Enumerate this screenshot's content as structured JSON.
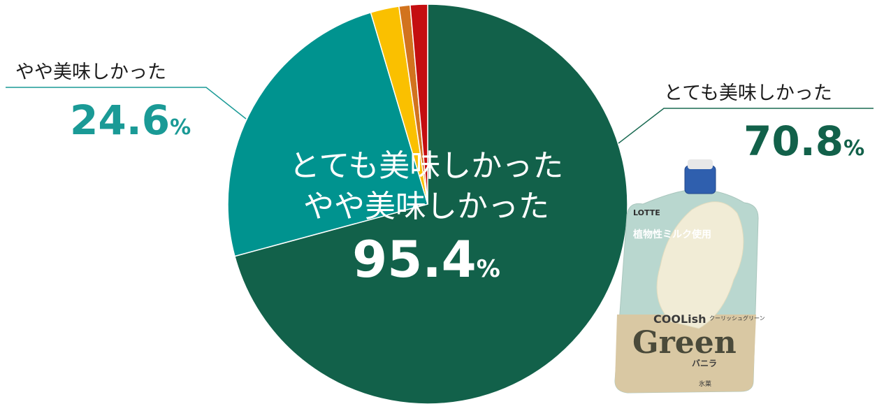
{
  "chart_data": {
    "type": "pie",
    "start_angle_deg": 0,
    "direction": "clockwise",
    "slices": [
      {
        "label": "とても美味しかった",
        "value": 70.8,
        "color": "#12614a"
      },
      {
        "label": "やや美味しかった",
        "value": 24.6,
        "color": "#00938f"
      },
      {
        "label": "",
        "value": 2.3,
        "color": "#fac000"
      },
      {
        "label": "",
        "value": 0.9,
        "color": "#d2731e"
      },
      {
        "label": "",
        "value": 1.4,
        "color": "#c40e10"
      }
    ],
    "callouts": {
      "right": {
        "label": "とても美味しかった",
        "value": "70.8",
        "unit": "%"
      },
      "left": {
        "label": "やや美味しかった",
        "value": "24.6",
        "unit": "%"
      }
    },
    "center": {
      "line1": "とても美味しかった",
      "line2": "やや美味しかった",
      "value": "95.4",
      "unit": "%"
    }
  },
  "product": {
    "brand": "LOTTE",
    "tag": "植物性ミルク使用",
    "name_small": "COOLish",
    "name_big": "Green",
    "kana": "クーリッシュグリーン",
    "flavor": "バニラ",
    "category": "氷菓"
  }
}
